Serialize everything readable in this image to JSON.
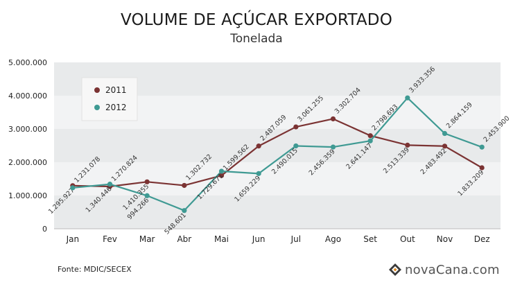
{
  "header": {
    "title": "VOLUME DE AÇÚCAR EXPORTADO",
    "subtitle": "Tonelada"
  },
  "footer": {
    "source": "Fonte: MDIC/SECEX",
    "brand": "novaCana.com"
  },
  "colors": {
    "series_2011": "#7b3333",
    "series_2012": "#3f9a93",
    "band": "#e8eaeb",
    "band_alt": "#f2f3f4"
  },
  "chart_data": {
    "type": "line",
    "categories": [
      "Jan",
      "Fev",
      "Mar",
      "Abr",
      "Mai",
      "Jun",
      "Jul",
      "Ago",
      "Set",
      "Out",
      "Nov",
      "Dez"
    ],
    "ylim": [
      0,
      5000000
    ],
    "yticks": [
      0,
      1000000,
      2000000,
      3000000,
      4000000,
      5000000
    ],
    "ytick_labels": [
      "0",
      "1.000.000",
      "2.000.000",
      "3.000.000",
      "4.000.000",
      "5.000.000"
    ],
    "legend_position": "top-left",
    "series": [
      {
        "name": "2011",
        "values": [
          1295927,
          1270824,
          1410355,
          1302732,
          1599562,
          2487059,
          3061255,
          3302704,
          2798693,
          2513339,
          2483492,
          1833209
        ],
        "labels": [
          "1.295.927",
          "1.270.824",
          "1.410.355",
          "1.302.732",
          "1.599.562",
          "2.487.059",
          "3.061.255",
          "3.302.704",
          "2.798.693",
          "2.513.339",
          "2.483.492",
          "1.833.209"
        ]
      },
      {
        "name": "2012",
        "values": [
          1231078,
          1340446,
          994266,
          548601,
          1729671,
          1659229,
          2490015,
          2456359,
          2641147,
          3933356,
          2864159,
          2453900
        ],
        "labels": [
          "1.231.078",
          "1.340.446",
          "994.266",
          "548.601",
          "1.729.671",
          "1.659.229",
          "2.490.015",
          "2.456.359",
          "2.641.147",
          "3.933.356",
          "2.864.159",
          "2.453.900"
        ]
      }
    ]
  }
}
